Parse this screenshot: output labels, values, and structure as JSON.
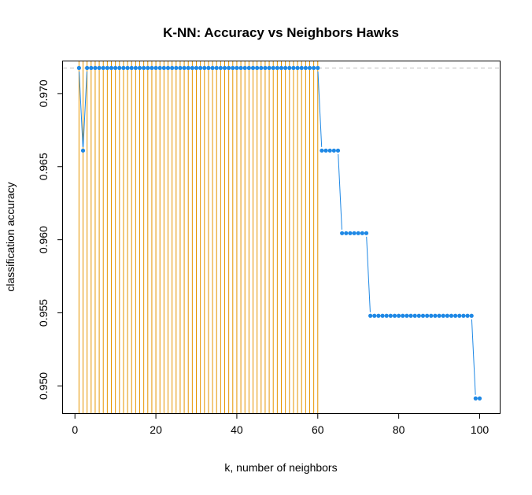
{
  "chart_data": {
    "type": "line",
    "title": "K-NN: Accuracy vs Neighbors  Hawks",
    "xlabel": "k, number of neighbors",
    "ylabel": "classification accuracy",
    "xlim": [
      -2.96,
      104.96
    ],
    "ylim": [
      0.94814,
      0.9722
    ],
    "x_ticks": [
      0,
      20,
      40,
      60,
      80,
      100
    ],
    "x_tick_labels": [
      "0",
      "20",
      "40",
      "60",
      "80",
      "100"
    ],
    "y_ticks": [
      0.95,
      0.955,
      0.96,
      0.965,
      0.97
    ],
    "y_tick_labels": [
      "0.950",
      "0.955",
      "0.960",
      "0.965",
      "0.970"
    ],
    "reference_line": {
      "y": 0.97175,
      "style": "dashed",
      "color": "#bebebe"
    },
    "highlight_lines": {
      "orientation": "vertical",
      "x_from": 1,
      "x_to": 60,
      "color": "#e69500"
    },
    "series": [
      {
        "color": "#1e88e5",
        "segments": [
          {
            "x_from": 1,
            "x_to": 1,
            "y": 0.97175
          },
          {
            "x_from": 2,
            "x_to": 2,
            "y": 0.9661
          },
          {
            "x_from": 3,
            "x_to": 60,
            "y": 0.97175
          },
          {
            "x_from": 61,
            "x_to": 65,
            "y": 0.9661
          },
          {
            "x_from": 66,
            "x_to": 72,
            "y": 0.96045
          },
          {
            "x_from": 73,
            "x_to": 98,
            "y": 0.9548
          },
          {
            "x_from": 99,
            "x_to": 100,
            "y": 0.94915
          }
        ]
      }
    ]
  }
}
